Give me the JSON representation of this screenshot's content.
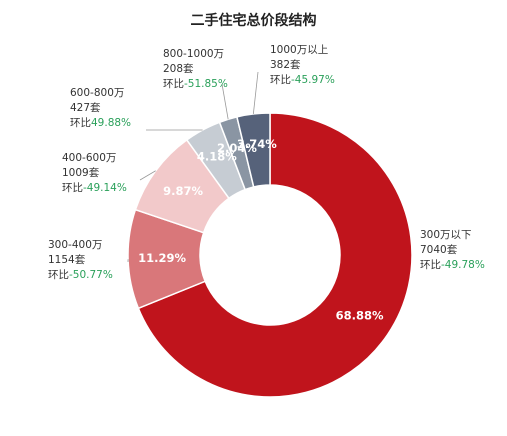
{
  "chart_data": {
    "type": "donut",
    "title": "二手住宅总价段结构",
    "segments": [
      {
        "name": "300万以下",
        "count": "7040套",
        "percent": 68.88,
        "percent_label": "68.88%",
        "change_label": "环比",
        "change": "-49.78%",
        "color": "#c0141c",
        "label_color": "#ffffff"
      },
      {
        "name": "300-400万",
        "count": "1154套",
        "percent": 11.29,
        "percent_label": "11.29%",
        "change_label": "环比",
        "change": "-50.77%",
        "color": "#d9777a",
        "label_color": "#ffffff"
      },
      {
        "name": "400-600万",
        "count": "1009套",
        "percent": 9.87,
        "percent_label": "9.87%",
        "change_label": "环比",
        "change": "-49.14%",
        "color": "#f2c9ca",
        "label_color": "#ffffff"
      },
      {
        "name": "600-800万",
        "count": "427套",
        "percent": 4.18,
        "percent_label": "4.18%",
        "change_label": "环比",
        "change": "49.88%",
        "color": "#c6ccd3",
        "label_color": "#ffffff"
      },
      {
        "name": "800-1000万",
        "count": "208套",
        "percent": 2.04,
        "percent_label": "2.04%",
        "change_label": "环比",
        "change": "-51.85%",
        "color": "#8a95a3",
        "label_color": "#ffffff"
      },
      {
        "name": "1000万以上",
        "count": "382套",
        "percent": 3.74,
        "percent_label": "3.74%",
        "change_label": "环比",
        "change": "-45.97%",
        "color": "#56627a",
        "label_color": "#ffffff"
      }
    ]
  }
}
